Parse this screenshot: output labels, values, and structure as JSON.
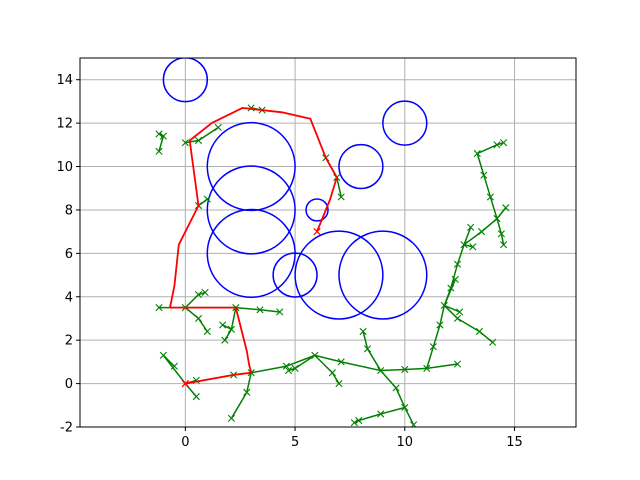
{
  "chart_data": {
    "type": "scatter",
    "title": "",
    "xlabel": "",
    "ylabel": "",
    "xlim": [
      -4.8,
      17.8
    ],
    "ylim": [
      -2,
      15
    ],
    "xticks": [
      0,
      5,
      10,
      15
    ],
    "yticks": [
      -2,
      0,
      2,
      4,
      6,
      8,
      10,
      12,
      14
    ],
    "grid": true,
    "legend": "none",
    "colors": {
      "obstacle": "#0000ff",
      "tree": "#008000",
      "path": "#ff0000",
      "frame": "#000000",
      "grid": "#b0b0b0"
    },
    "obstacles": [
      {
        "x": 0,
        "y": 14,
        "r": 1
      },
      {
        "x": 3,
        "y": 10,
        "r": 2
      },
      {
        "x": 3,
        "y": 8,
        "r": 2
      },
      {
        "x": 3,
        "y": 6,
        "r": 2
      },
      {
        "x": 5,
        "y": 5,
        "r": 1
      },
      {
        "x": 6,
        "y": 8,
        "r": 0.5
      },
      {
        "x": 7,
        "y": 5,
        "r": 2
      },
      {
        "x": 9,
        "y": 5,
        "r": 2
      },
      {
        "x": 8,
        "y": 10,
        "r": 1
      },
      {
        "x": 10,
        "y": 12,
        "r": 1
      }
    ],
    "tree_edges": [
      [
        [
          0,
          0
        ],
        [
          2.2,
          0.4
        ]
      ],
      [
        [
          2.2,
          0.4
        ],
        [
          3.0,
          0.5
        ]
      ],
      [
        [
          0,
          0
        ],
        [
          0.5,
          0.15
        ]
      ],
      [
        [
          0,
          0
        ],
        [
          -1.0,
          1.3
        ]
      ],
      [
        [
          0,
          0
        ],
        [
          0.5,
          -0.6
        ]
      ],
      [
        [
          -1.0,
          1.3
        ],
        [
          -0.5,
          0.8
        ]
      ],
      [
        [
          3.0,
          0.5
        ],
        [
          2.8,
          -0.4
        ]
      ],
      [
        [
          2.8,
          -0.4
        ],
        [
          2.1,
          -1.6
        ]
      ],
      [
        [
          3.0,
          0.5
        ],
        [
          4.6,
          0.8
        ]
      ],
      [
        [
          4.6,
          0.8
        ],
        [
          5.9,
          1.3
        ]
      ],
      [
        [
          5.9,
          1.3
        ],
        [
          6.7,
          0.5
        ]
      ],
      [
        [
          6.7,
          0.5
        ],
        [
          7.0,
          0.0
        ]
      ],
      [
        [
          5.9,
          1.3
        ],
        [
          7.1,
          1.0
        ]
      ],
      [
        [
          7.1,
          1.0
        ],
        [
          8.9,
          0.6
        ]
      ],
      [
        [
          5.9,
          1.3
        ],
        [
          5.0,
          0.7
        ]
      ],
      [
        [
          5.0,
          0.7
        ],
        [
          4.7,
          0.6
        ]
      ],
      [
        [
          8.9,
          0.6
        ],
        [
          8.3,
          1.6
        ]
      ],
      [
        [
          8.3,
          1.6
        ],
        [
          8.1,
          2.4
        ]
      ],
      [
        [
          8.9,
          0.6
        ],
        [
          9.6,
          -0.2
        ]
      ],
      [
        [
          9.6,
          -0.2
        ],
        [
          10.0,
          -1.1
        ]
      ],
      [
        [
          10.0,
          -1.1
        ],
        [
          10.4,
          -1.9
        ]
      ],
      [
        [
          10.0,
          -1.1
        ],
        [
          8.9,
          -1.4
        ]
      ],
      [
        [
          8.9,
          -1.4
        ],
        [
          7.9,
          -1.7
        ]
      ],
      [
        [
          7.9,
          -1.7
        ],
        [
          7.7,
          -1.8
        ]
      ],
      [
        [
          8.9,
          0.6
        ],
        [
          10.0,
          0.65
        ]
      ],
      [
        [
          10.0,
          0.65
        ],
        [
          11.0,
          0.7
        ]
      ],
      [
        [
          11.0,
          0.7
        ],
        [
          12.4,
          0.9
        ]
      ],
      [
        [
          11.0,
          0.7
        ],
        [
          11.3,
          1.7
        ]
      ],
      [
        [
          11.3,
          1.7
        ],
        [
          11.6,
          2.7
        ]
      ],
      [
        [
          11.6,
          2.7
        ],
        [
          11.8,
          3.6
        ]
      ],
      [
        [
          11.8,
          3.6
        ],
        [
          12.1,
          4.4
        ]
      ],
      [
        [
          11.8,
          3.6
        ],
        [
          12.5,
          3.3
        ]
      ],
      [
        [
          11.8,
          3.6
        ],
        [
          12.4,
          3.0
        ]
      ],
      [
        [
          12.4,
          3.0
        ],
        [
          13.4,
          2.4
        ]
      ],
      [
        [
          13.4,
          2.4
        ],
        [
          14.0,
          1.9
        ]
      ],
      [
        [
          11.8,
          3.6
        ],
        [
          12.3,
          4.8
        ]
      ],
      [
        [
          12.1,
          4.4
        ],
        [
          12.4,
          5.5
        ]
      ],
      [
        [
          12.4,
          5.5
        ],
        [
          12.7,
          6.4
        ]
      ],
      [
        [
          12.7,
          6.4
        ],
        [
          13.0,
          7.2
        ]
      ],
      [
        [
          12.7,
          6.4
        ],
        [
          13.1,
          6.3
        ]
      ],
      [
        [
          12.7,
          6.4
        ],
        [
          13.5,
          7.0
        ]
      ],
      [
        [
          13.5,
          7.0
        ],
        [
          14.2,
          7.6
        ]
      ],
      [
        [
          14.2,
          7.6
        ],
        [
          14.6,
          8.1
        ]
      ],
      [
        [
          14.2,
          7.6
        ],
        [
          14.4,
          6.9
        ]
      ],
      [
        [
          14.4,
          6.9
        ],
        [
          14.5,
          6.4
        ]
      ],
      [
        [
          14.2,
          7.6
        ],
        [
          13.9,
          8.6
        ]
      ],
      [
        [
          13.9,
          8.6
        ],
        [
          13.6,
          9.6
        ]
      ],
      [
        [
          13.6,
          9.6
        ],
        [
          13.3,
          10.6
        ]
      ],
      [
        [
          13.3,
          10.6
        ],
        [
          14.2,
          11.0
        ]
      ],
      [
        [
          14.2,
          11.0
        ],
        [
          14.5,
          11.1
        ]
      ],
      [
        [
          0,
          3.5
        ],
        [
          2.3,
          3.5
        ]
      ],
      [
        [
          2.3,
          3.5
        ],
        [
          3.4,
          3.4
        ]
      ],
      [
        [
          3.4,
          3.4
        ],
        [
          4.3,
          3.3
        ]
      ],
      [
        [
          0,
          3.5
        ],
        [
          -1.2,
          3.5
        ]
      ],
      [
        [
          0,
          3.5
        ],
        [
          0.6,
          3.0
        ]
      ],
      [
        [
          0.6,
          3.0
        ],
        [
          1.0,
          2.4
        ]
      ],
      [
        [
          0,
          3.5
        ],
        [
          0.6,
          4.1
        ]
      ],
      [
        [
          0.6,
          4.1
        ],
        [
          0.9,
          4.2
        ]
      ],
      [
        [
          2.3,
          3.5
        ],
        [
          2.1,
          2.5
        ]
      ],
      [
        [
          2.1,
          2.5
        ],
        [
          1.8,
          2.0
        ]
      ],
      [
        [
          2.1,
          2.5
        ],
        [
          1.7,
          2.7
        ]
      ],
      [
        [
          -1.0,
          11.4
        ],
        [
          -1.2,
          10.7
        ]
      ],
      [
        [
          -1.0,
          11.4
        ],
        [
          -1.2,
          11.5
        ]
      ],
      [
        [
          0,
          11.1
        ],
        [
          0.6,
          11.2
        ]
      ],
      [
        [
          0.6,
          11.2
        ],
        [
          1.5,
          11.8
        ]
      ],
      [
        [
          0.6,
          8.2
        ],
        [
          1.0,
          8.5
        ]
      ],
      [
        [
          6.4,
          10.4
        ],
        [
          6.9,
          9.5
        ]
      ],
      [
        [
          6.9,
          9.5
        ],
        [
          7.1,
          8.6
        ]
      ],
      [
        [
          3.0,
          12.7
        ],
        [
          3.5,
          12.6
        ]
      ]
    ],
    "path": [
      [
        6.0,
        7.0
      ],
      [
        6.6,
        8.5
      ],
      [
        6.9,
        9.5
      ],
      [
        6.4,
        10.4
      ],
      [
        5.7,
        12.2
      ],
      [
        4.4,
        12.5
      ],
      [
        2.6,
        12.7
      ],
      [
        1.2,
        12.0
      ],
      [
        0.2,
        11.2
      ],
      [
        0.6,
        8.2
      ],
      [
        -0.3,
        6.4
      ],
      [
        -0.5,
        4.5
      ],
      [
        -0.7,
        3.5
      ],
      [
        2.3,
        3.5
      ],
      [
        2.8,
        1.5
      ],
      [
        2.9,
        0.9
      ],
      [
        3.0,
        0.5
      ],
      [
        2.2,
        0.4
      ],
      [
        0,
        0
      ]
    ]
  }
}
